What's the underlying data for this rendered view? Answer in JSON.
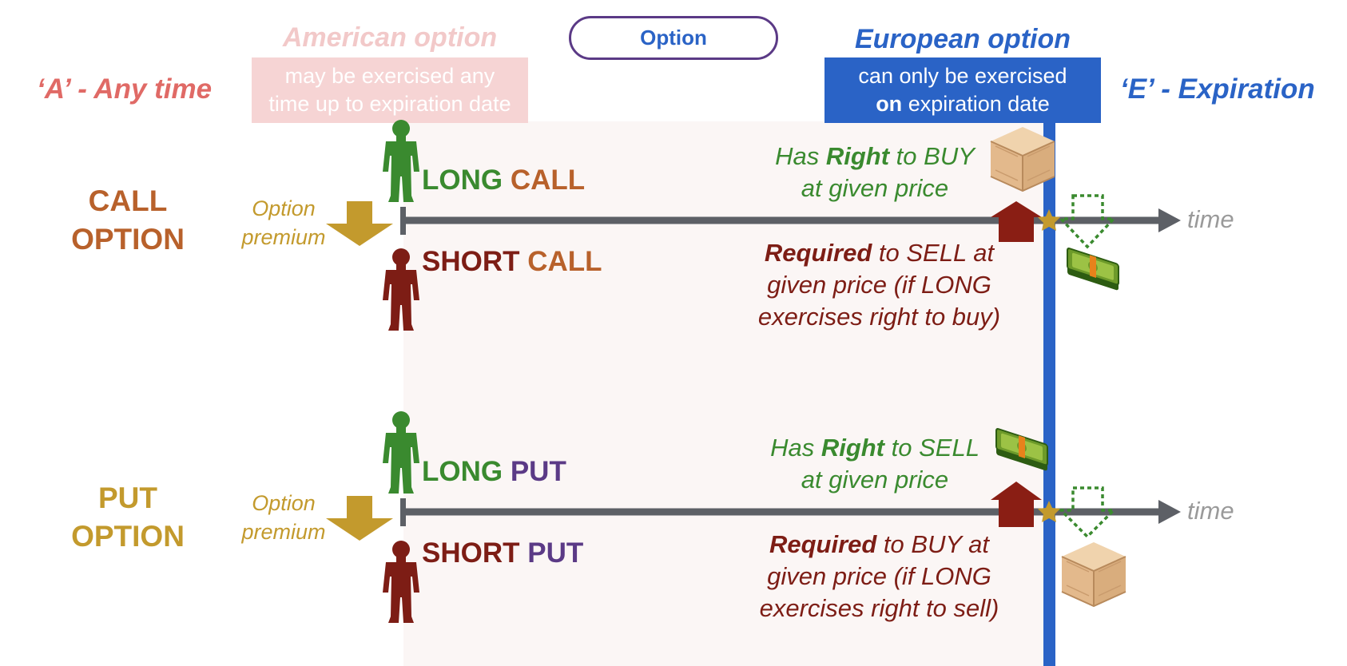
{
  "header": {
    "option_label": "Option"
  },
  "american": {
    "title": "American option",
    "desc_line1": "may be exercised any",
    "desc_line2": "time up to expiration date",
    "tag": "‘A’ - Any time"
  },
  "european": {
    "title": "European option",
    "desc_line1": "can only be exercised",
    "desc_line2_bold": "on",
    "desc_line2_rest": " expiration date",
    "tag": "‘E’ - Expiration"
  },
  "call": {
    "label_line1": "CALL",
    "label_line2": "OPTION",
    "premium_line1": "Option",
    "premium_line2": "premium",
    "long_role_1": "LONG ",
    "long_role_2": "CALL",
    "short_role_1": "SHORT ",
    "short_role_2": "CALL",
    "long_desc_pre": "Has ",
    "long_desc_bold": "Right",
    "long_desc_post": " to BUY",
    "long_desc_line2": "at given price",
    "short_desc_bold": "Required",
    "short_desc_post": " to SELL at",
    "short_desc_line2": "given price (if LONG",
    "short_desc_line3": "exercises right to buy)",
    "time_label": "time"
  },
  "put": {
    "label_line1": "PUT",
    "label_line2": "OPTION",
    "premium_line1": "Option",
    "premium_line2": "premium",
    "long_role_1": "LONG ",
    "long_role_2": "PUT",
    "short_role_1": "SHORT ",
    "short_role_2": "PUT",
    "long_desc_pre": "Has ",
    "long_desc_bold": "Right",
    "long_desc_post": " to SELL",
    "long_desc_line2": "at given price",
    "short_desc_bold": "Required",
    "short_desc_post": " to BUY at",
    "short_desc_line2": "given price (if LONG",
    "short_desc_line3": "exercises right to sell)",
    "time_label": "time"
  },
  "colors": {
    "american": "#e06a66",
    "european": "#2a63c6",
    "long": "#3a8a2f",
    "short": "#7d1d15",
    "call": "#b8612b",
    "put": "#5b3a86",
    "premium": "#c39a2d",
    "timeline": "#5d6066"
  },
  "icons": [
    "person-icon",
    "crate-icon",
    "money-stack-icon",
    "star-icon",
    "arrow-down-icon",
    "arrow-up-icon"
  ]
}
